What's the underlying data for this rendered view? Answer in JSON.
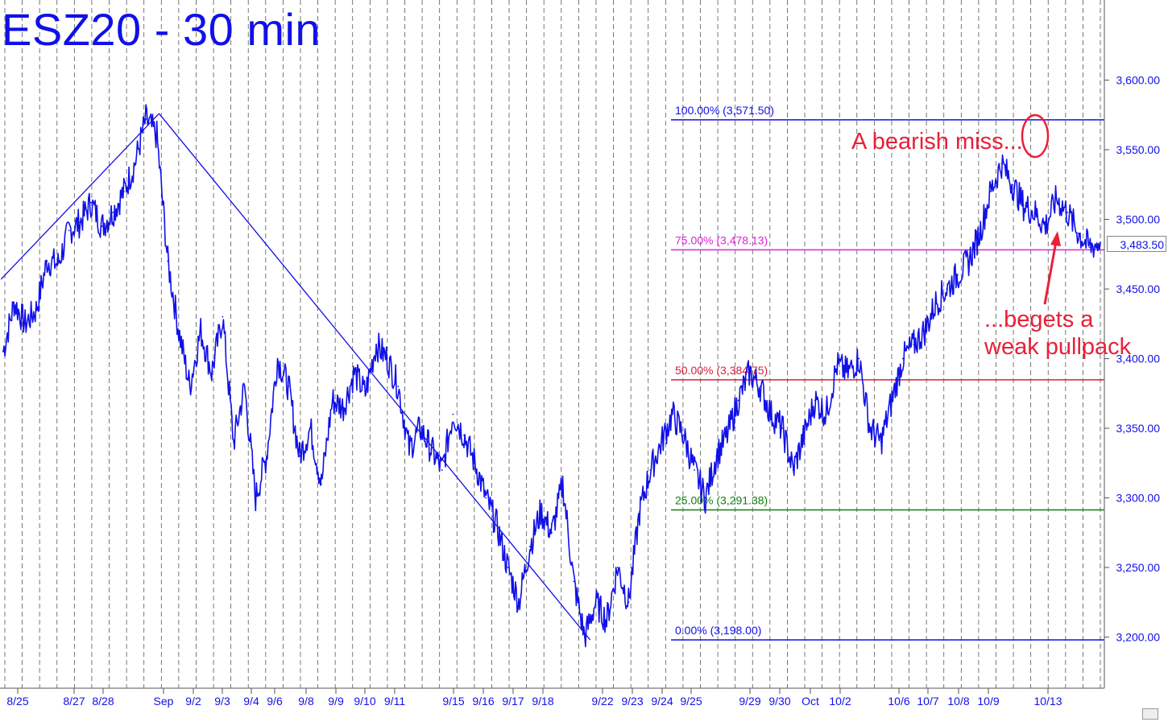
{
  "title": "ESZ20 - 30 min",
  "annotations": {
    "miss": "A bearish miss...",
    "pullback_line1": "...begets a",
    "pullback_line2": "weak pullpack"
  },
  "last_price": "3,483.50",
  "chart_data": {
    "type": "line",
    "title": "ESZ20 - 30 min",
    "ylim": [
      3150,
      3650
    ],
    "y_ticks": [
      "3,200.00",
      "3,250.00",
      "3,300.00",
      "3,350.00",
      "3,400.00",
      "3,450.00",
      "3,500.00",
      "3,550.00",
      "3,600.00"
    ],
    "y_tick_values": [
      3200,
      3250,
      3300,
      3350,
      3400,
      3450,
      3500,
      3550,
      3600
    ],
    "x_ticks": [
      "8/25",
      "8/27",
      "8/28",
      "Sep",
      "9/2",
      "9/3",
      "9/4",
      "9/6",
      "9/8",
      "9/9",
      "9/10",
      "9/11",
      "9/15",
      "9/16",
      "9/17",
      "9/18",
      "9/22",
      "9/23",
      "9/24",
      "9/25",
      "9/29",
      "9/30",
      "Oct",
      "10/2",
      "10/6",
      "10/7",
      "10/8",
      "10/9",
      "10/13"
    ],
    "grid": true,
    "fib_levels": [
      {
        "label": "100.00% (3,571.50)",
        "value": 3571.5,
        "color": "#1010e8"
      },
      {
        "label": "75.00% (3,478.13)",
        "value": 3478.13,
        "color": "#e020e0"
      },
      {
        "label": "50.00% (3,384.75)",
        "value": 3384.75,
        "color": "#d8203a"
      },
      {
        "label": "25.00% (3,291.38)",
        "value": 3291.38,
        "color": "#108010"
      },
      {
        "label": "0.00% (3,198.00)",
        "value": 3198.0,
        "color": "#1010e8"
      }
    ],
    "series": [
      {
        "x": [
          0,
          1,
          2,
          3,
          4,
          5,
          6,
          7,
          8,
          9,
          10,
          11,
          12,
          13,
          14,
          15,
          16,
          17,
          18,
          19,
          20,
          21,
          22,
          23,
          24,
          25,
          26,
          27,
          28,
          29,
          30,
          31,
          32,
          33,
          34,
          35,
          36,
          37,
          38,
          39,
          40,
          41,
          42,
          43,
          44,
          45,
          46,
          47,
          48,
          49,
          50,
          51,
          52,
          53,
          54,
          55,
          56,
          57,
          58,
          59,
          60,
          61,
          62,
          63,
          64,
          65,
          66,
          67,
          68,
          69,
          70,
          71,
          72,
          73,
          74,
          75,
          76,
          77,
          78,
          79,
          80,
          81,
          82,
          83,
          84,
          85,
          86,
          87,
          88,
          89,
          90,
          91,
          92,
          93,
          94,
          95,
          96,
          97,
          98,
          99,
          100
        ],
        "values": [
          3405,
          3440,
          3425,
          3435,
          3470,
          3468,
          3492,
          3498,
          3512,
          3495,
          3505,
          3520,
          3540,
          3572,
          3560,
          3470,
          3420,
          3380,
          3420,
          3390,
          3430,
          3340,
          3380,
          3300,
          3330,
          3400,
          3380,
          3330,
          3350,
          3310,
          3370,
          3365,
          3390,
          3375,
          3410,
          3400,
          3380,
          3335,
          3350,
          3335,
          3320,
          3360,
          3345,
          3325,
          3300,
          3280,
          3250,
          3225,
          3265,
          3290,
          3275,
          3310,
          3240,
          3200,
          3225,
          3212,
          3250,
          3225,
          3290,
          3320,
          3340,
          3360,
          3345,
          3320,
          3300,
          3330,
          3345,
          3370,
          3390,
          3380,
          3360,
          3350,
          3320,
          3345,
          3370,
          3360,
          3395,
          3390,
          3400,
          3350,
          3340,
          3370,
          3400,
          3410,
          3420,
          3440,
          3450,
          3460,
          3470,
          3490,
          3520,
          3540,
          3525,
          3510,
          3505,
          3495,
          3515,
          3505,
          3490,
          3480,
          3483.5
        ]
      }
    ],
    "trendlines": [
      {
        "from": {
          "x": -0.2,
          "y": 3457
        },
        "to": {
          "x": 14.2,
          "y": 3576
        }
      },
      {
        "from": {
          "x": 14.2,
          "y": 3576
        },
        "to": {
          "x": 53.5,
          "y": 3198
        }
      }
    ]
  },
  "colors": {
    "series": "#1010e8",
    "grid": "#555555",
    "annotation": "#e8203a"
  }
}
